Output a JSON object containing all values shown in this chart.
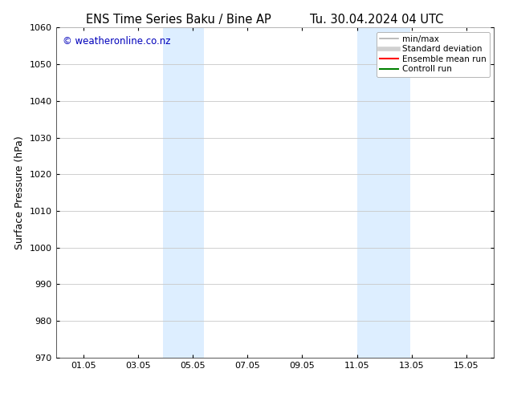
{
  "title_left": "ENS Time Series Baku / Bine AP",
  "title_right": "Tu. 30.04.2024 04 UTC",
  "ylabel": "Surface Pressure (hPa)",
  "ylim": [
    970,
    1060
  ],
  "yticks": [
    970,
    980,
    990,
    1000,
    1010,
    1020,
    1030,
    1040,
    1050,
    1060
  ],
  "xtick_labels": [
    "01.05",
    "03.05",
    "05.05",
    "07.05",
    "09.05",
    "11.05",
    "13.05",
    "15.05"
  ],
  "xtick_positions": [
    1,
    3,
    5,
    7,
    9,
    11,
    13,
    15
  ],
  "xlim": [
    0,
    16
  ],
  "shaded_regions": [
    {
      "x_start": 3.9,
      "x_end": 5.4,
      "color": "#ddeeff"
    },
    {
      "x_start": 11.0,
      "x_end": 12.95,
      "color": "#ddeeff"
    }
  ],
  "watermark_text": "© weatheronline.co.nz",
  "watermark_color": "#0000bb",
  "legend_entries": [
    {
      "label": "min/max",
      "color": "#b0b0b0",
      "lw": 1.2
    },
    {
      "label": "Standard deviation",
      "color": "#d0d0d0",
      "lw": 4.0
    },
    {
      "label": "Ensemble mean run",
      "color": "#ff0000",
      "lw": 1.5
    },
    {
      "label": "Controll run",
      "color": "#008000",
      "lw": 1.5
    }
  ],
  "bg_color": "#ffffff",
  "grid_color": "#c8c8c8",
  "title_fontsize": 10.5,
  "tick_fontsize": 8,
  "label_fontsize": 9,
  "watermark_fontsize": 8.5,
  "legend_fontsize": 7.5
}
